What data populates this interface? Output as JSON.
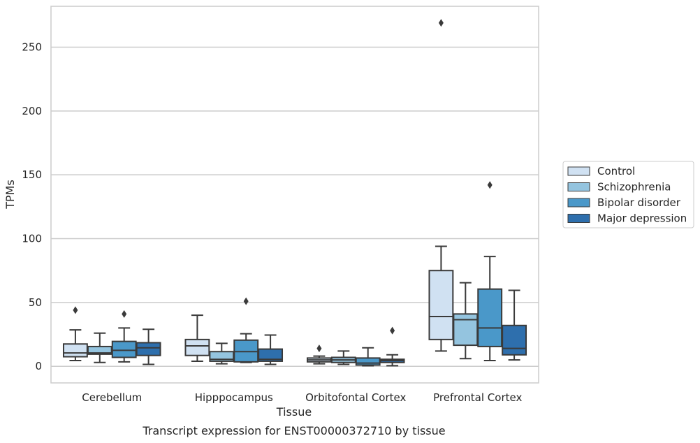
{
  "chart_data": {
    "type": "box",
    "title": "Transcript expression for ENST00000372710 by tissue",
    "xlabel": "Tissue",
    "ylabel": "TPMs",
    "ylim": [
      -13,
      282
    ],
    "yticks": [
      0,
      50,
      100,
      150,
      200,
      250
    ],
    "grid": "horizontal",
    "legend_position": "right",
    "categories": [
      "Cerebellum",
      "Hipppocampus",
      "Orbitofontal Cortex",
      "Prefrontal Cortex"
    ],
    "series": [
      {
        "name": "Control",
        "color": "#d0e1f2",
        "boxes": [
          {
            "whisker_low": 4.5,
            "q1": 7.5,
            "median": 10.5,
            "q3": 17.5,
            "whisker_high": 28.5,
            "outliers": [
              44
            ]
          },
          {
            "whisker_low": 4,
            "q1": 8.5,
            "median": 16,
            "q3": 21,
            "whisker_high": 40,
            "outliers": []
          },
          {
            "whisker_low": 2,
            "q1": 3.5,
            "median": 5,
            "q3": 6.5,
            "whisker_high": 8,
            "outliers": [
              14
            ]
          },
          {
            "whisker_low": 12,
            "q1": 21,
            "median": 39,
            "q3": 75,
            "whisker_high": 94,
            "outliers": [
              269
            ]
          }
        ]
      },
      {
        "name": "Schizophrenia",
        "color": "#94c4df",
        "boxes": [
          {
            "whisker_low": 3,
            "q1": 9.5,
            "median": 10.5,
            "q3": 15.5,
            "whisker_high": 26,
            "outliers": []
          },
          {
            "whisker_low": 2,
            "q1": 4,
            "median": 5.5,
            "q3": 11.5,
            "whisker_high": 18,
            "outliers": []
          },
          {
            "whisker_low": 1.5,
            "q1": 3,
            "median": 5,
            "q3": 7,
            "whisker_high": 12,
            "outliers": []
          },
          {
            "whisker_low": 6,
            "q1": 16.5,
            "median": 36.5,
            "q3": 41,
            "whisker_high": 65.5,
            "outliers": []
          }
        ]
      },
      {
        "name": "Bipolar disorder",
        "color": "#4a98c9",
        "boxes": [
          {
            "whisker_low": 3.5,
            "q1": 7,
            "median": 12.5,
            "q3": 19.5,
            "whisker_high": 30,
            "outliers": [
              41
            ]
          },
          {
            "whisker_low": 3,
            "q1": 3.5,
            "median": 11.5,
            "q3": 20.5,
            "whisker_high": 25.5,
            "outliers": [
              51
            ]
          },
          {
            "whisker_low": 0.5,
            "q1": 1,
            "median": 2.5,
            "q3": 6.5,
            "whisker_high": 14.5,
            "outliers": []
          },
          {
            "whisker_low": 4.5,
            "q1": 15.5,
            "median": 30,
            "q3": 60.5,
            "whisker_high": 86,
            "outliers": [
              142
            ]
          }
        ]
      },
      {
        "name": "Major depression",
        "color": "#2e6fad",
        "boxes": [
          {
            "whisker_low": 1.5,
            "q1": 8.5,
            "median": 14.5,
            "q3": 18.5,
            "whisker_high": 29,
            "outliers": []
          },
          {
            "whisker_low": 1.5,
            "q1": 4,
            "median": 5.5,
            "q3": 13.5,
            "whisker_high": 24.5,
            "outliers": []
          },
          {
            "whisker_low": 0.5,
            "q1": 3,
            "median": 4.5,
            "q3": 5.5,
            "whisker_high": 9,
            "outliers": [
              28
            ]
          },
          {
            "whisker_low": 5,
            "q1": 9,
            "median": 14,
            "q3": 32,
            "whisker_high": 59.5,
            "outliers": []
          }
        ]
      }
    ]
  }
}
